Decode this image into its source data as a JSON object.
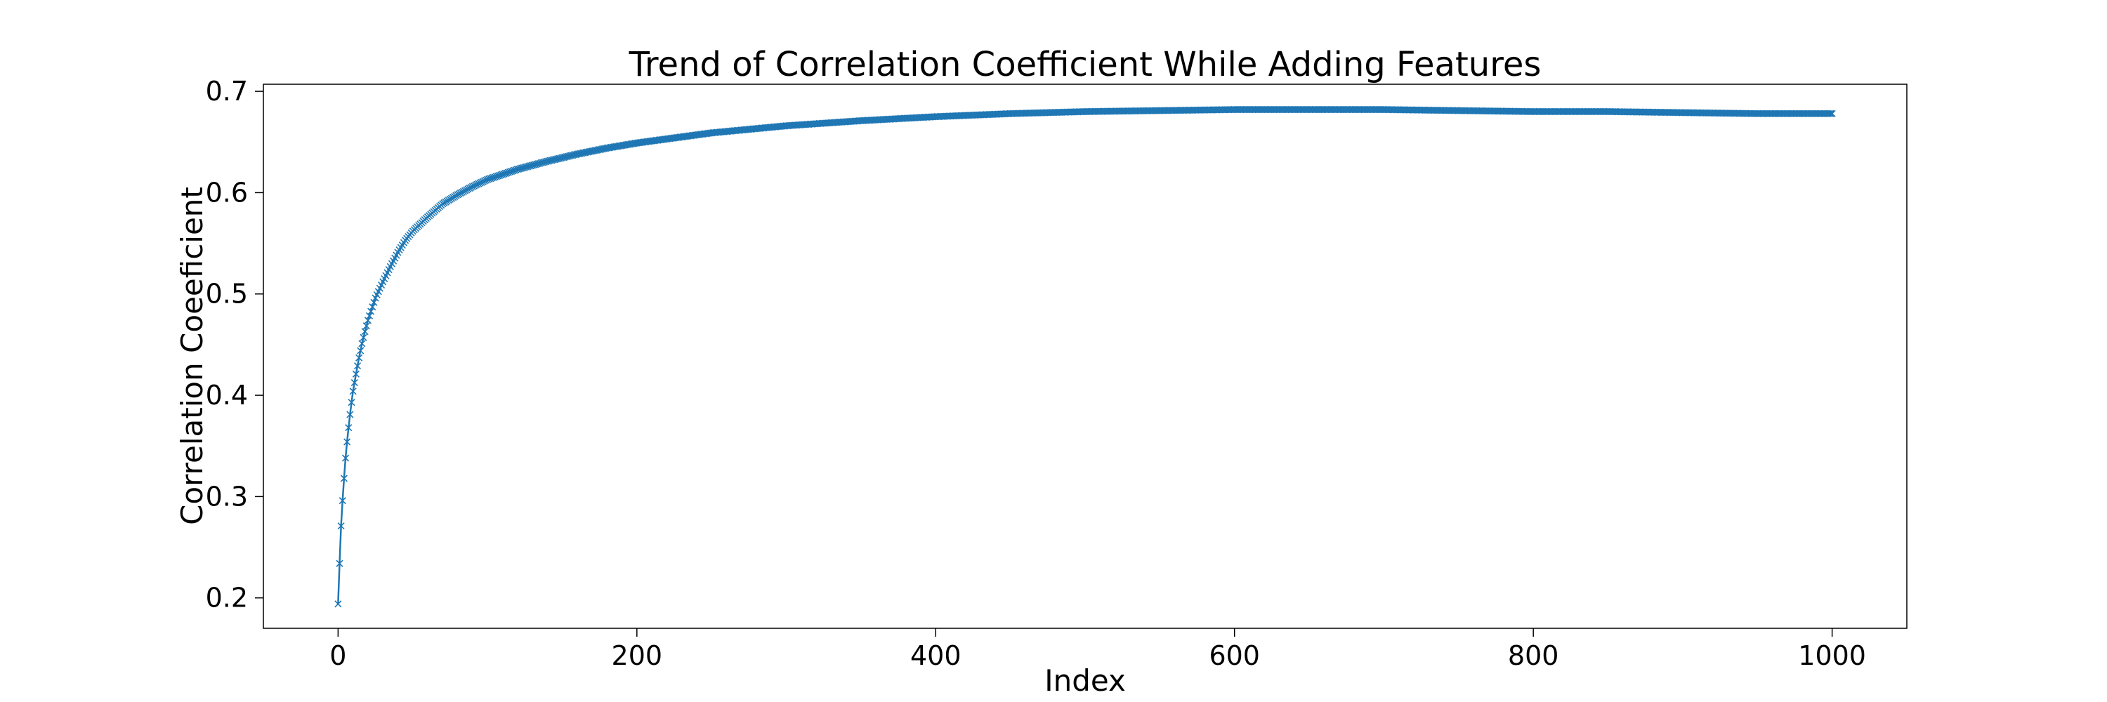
{
  "chart_data": {
    "type": "line",
    "title": "Trend of Correlation Coefficient While Adding Features",
    "xlabel": "Index",
    "ylabel": "Correlation Coeeficient",
    "xlim": [
      -50,
      1050
    ],
    "ylim": [
      0.17,
      0.707
    ],
    "xticks": [
      0,
      200,
      400,
      600,
      800,
      1000
    ],
    "xtick_labels": [
      "0",
      "200",
      "400",
      "600",
      "800",
      "1000"
    ],
    "yticks": [
      0.2,
      0.3,
      0.4,
      0.5,
      0.6,
      0.7
    ],
    "ytick_labels": [
      "0.2",
      "0.3",
      "0.4",
      "0.5",
      "0.6",
      "0.7"
    ],
    "grid": false,
    "legend": "none",
    "marker": "x",
    "color": "#1f77b4",
    "series": [
      {
        "x": [
          0,
          1,
          2,
          3,
          4,
          5,
          6,
          7,
          8,
          9,
          10,
          12,
          14,
          16,
          18,
          20,
          25,
          30,
          35,
          40,
          45,
          50,
          60,
          70,
          80,
          90,
          100,
          120,
          140,
          160,
          180,
          200,
          250,
          300,
          350,
          400,
          450,
          500,
          550,
          600,
          650,
          700,
          750,
          800,
          850,
          900,
          950,
          1000
        ],
        "y": [
          0.194,
          0.234,
          0.271,
          0.296,
          0.318,
          0.338,
          0.354,
          0.368,
          0.381,
          0.393,
          0.404,
          0.421,
          0.437,
          0.451,
          0.463,
          0.474,
          0.496,
          0.512,
          0.527,
          0.541,
          0.553,
          0.562,
          0.576,
          0.589,
          0.598,
          0.606,
          0.613,
          0.623,
          0.631,
          0.638,
          0.644,
          0.649,
          0.659,
          0.666,
          0.671,
          0.675,
          0.678,
          0.68,
          0.681,
          0.682,
          0.682,
          0.682,
          0.681,
          0.68,
          0.68,
          0.679,
          0.678,
          0.678
        ]
      }
    ]
  }
}
